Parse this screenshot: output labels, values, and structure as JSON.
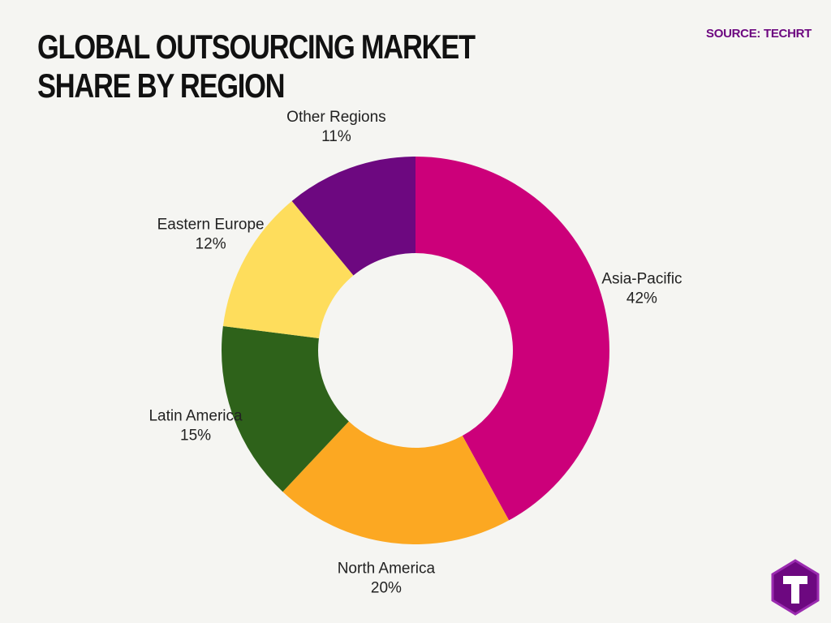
{
  "chart_data": {
    "type": "donut",
    "title": "GLOBAL OUTSOURCING MARKET SHARE BY REGION",
    "source": "SOURCE: TECHRT",
    "categories": [
      "Asia-Pacific",
      "North America",
      "Latin America",
      "Eastern Europe",
      "Other Regions"
    ],
    "values": [
      42,
      20,
      15,
      12,
      11
    ],
    "value_labels": [
      "42%",
      "20%",
      "15%",
      "12%",
      "11%"
    ],
    "colors": [
      "#cc007a",
      "#fca822",
      "#2e621a",
      "#fedd5c",
      "#6d0880"
    ]
  }
}
